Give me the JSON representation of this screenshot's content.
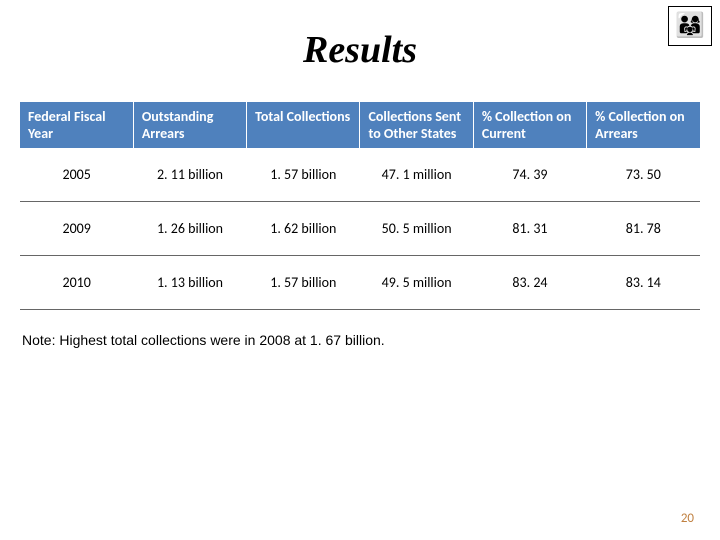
{
  "title": "Results",
  "logo_glyph": "👨‍👩‍👧",
  "table": {
    "header_bg": "#4f81bd",
    "header_fg": "#ffffff",
    "columns": [
      "Federal Fiscal Year",
      "Outstanding Arrears",
      "Total Collections",
      "Collections Sent to Other States",
      "% Collection on Current",
      "% Collection on Arrears"
    ],
    "rows": [
      {
        "year": "2005",
        "arrears": "2. 11 billion",
        "total": "1. 57 billion",
        "sent": "47. 1 million",
        "pct_current": "74. 39",
        "pct_arrears": "73. 50"
      },
      {
        "year": "2009",
        "arrears": "1. 26 billion",
        "total": "1. 62 billion",
        "sent": "50. 5 million",
        "pct_current": "81. 31",
        "pct_arrears": "81. 78"
      },
      {
        "year": "2010",
        "arrears": "1. 13 billion",
        "total": "1. 57 billion",
        "sent": "49. 5 million",
        "pct_current": "83. 24",
        "pct_arrears": "83. 14"
      }
    ]
  },
  "note": "Note:  Highest total collections were in 2008 at 1. 67 billion.",
  "page_number": "20",
  "colors": {
    "pagenum": "#c08040",
    "row_border": "#666666"
  }
}
